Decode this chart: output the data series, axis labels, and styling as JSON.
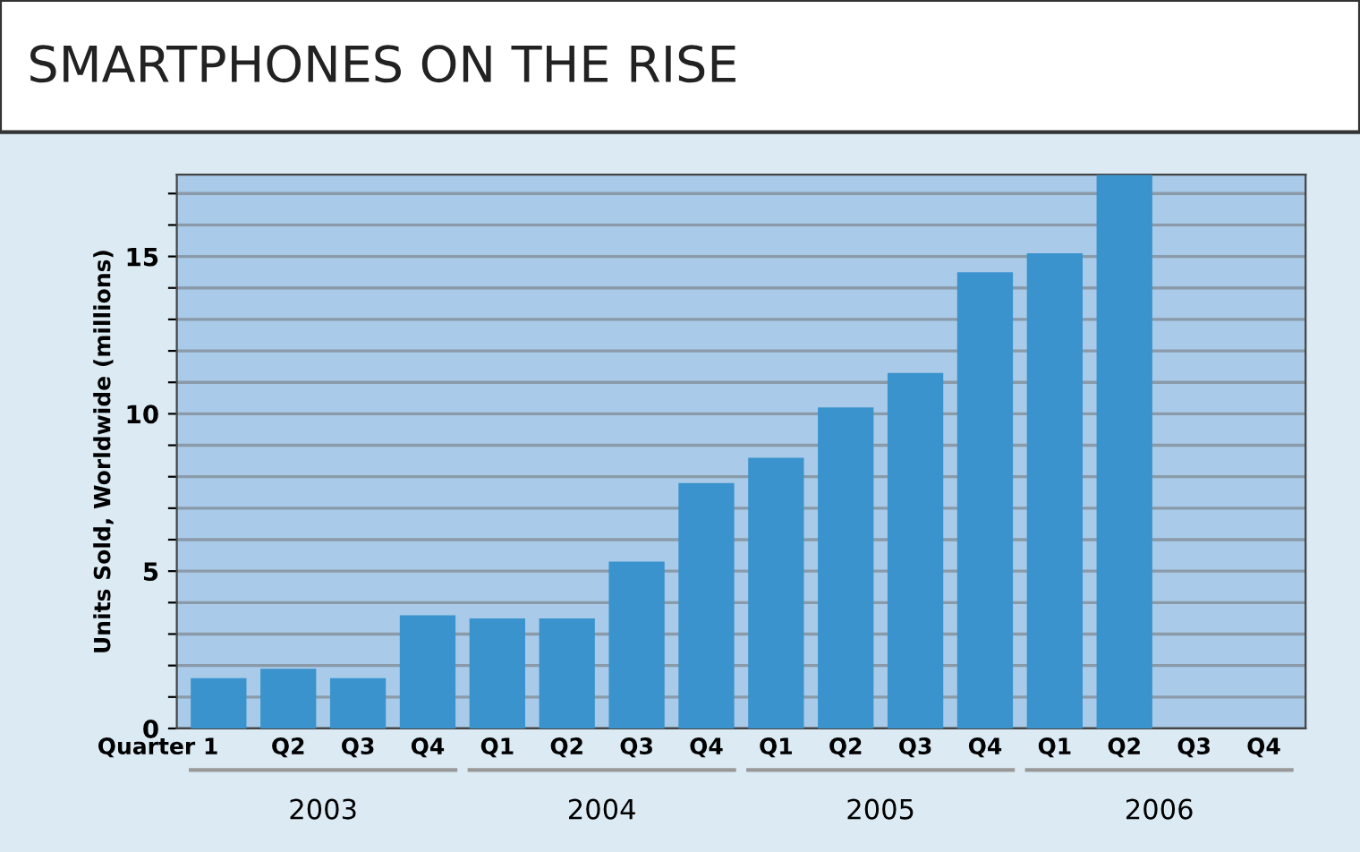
{
  "chart_data": {
    "type": "bar",
    "title": "SMARTPHONES ON THE RISE",
    "ylabel": "Units Sold, Worldwide (millions)",
    "categories": [
      "Quarter 1",
      "Q2",
      "Q3",
      "Q4",
      "Q1",
      "Q2",
      "Q3",
      "Q4",
      "Q1",
      "Q2",
      "Q3",
      "Q4",
      "Q1",
      "Q2",
      "Q3",
      "Q4"
    ],
    "values": [
      1.6,
      1.9,
      1.6,
      3.6,
      3.5,
      3.5,
      5.3,
      7.8,
      8.6,
      10.2,
      11.3,
      14.5,
      15.1,
      17.6,
      null,
      null
    ],
    "color": "#3a93cc",
    "annotations": [
      "2003",
      "2004",
      "2005",
      "2006"
    ],
    "ylim": [
      0,
      17.6
    ],
    "yticks": [
      0,
      {
        "value": 1,
        "label": null
      },
      {
        "value": 2,
        "label": null
      },
      {
        "value": 3,
        "label": null
      },
      {
        "value": 4,
        "label": null
      },
      5,
      {
        "value": 6,
        "label": null
      },
      {
        "value": 7,
        "label": null
      },
      {
        "value": 8,
        "label": null
      },
      {
        "value": 9,
        "label": null
      },
      10,
      {
        "value": 11,
        "label": null
      },
      {
        "value": 12,
        "label": null
      },
      {
        "value": 13,
        "label": null
      },
      {
        "value": 14,
        "label": null
      },
      15,
      {
        "value": 16,
        "label": null
      },
      {
        "value": 17,
        "label": null
      }
    ],
    "grid": "y"
  }
}
